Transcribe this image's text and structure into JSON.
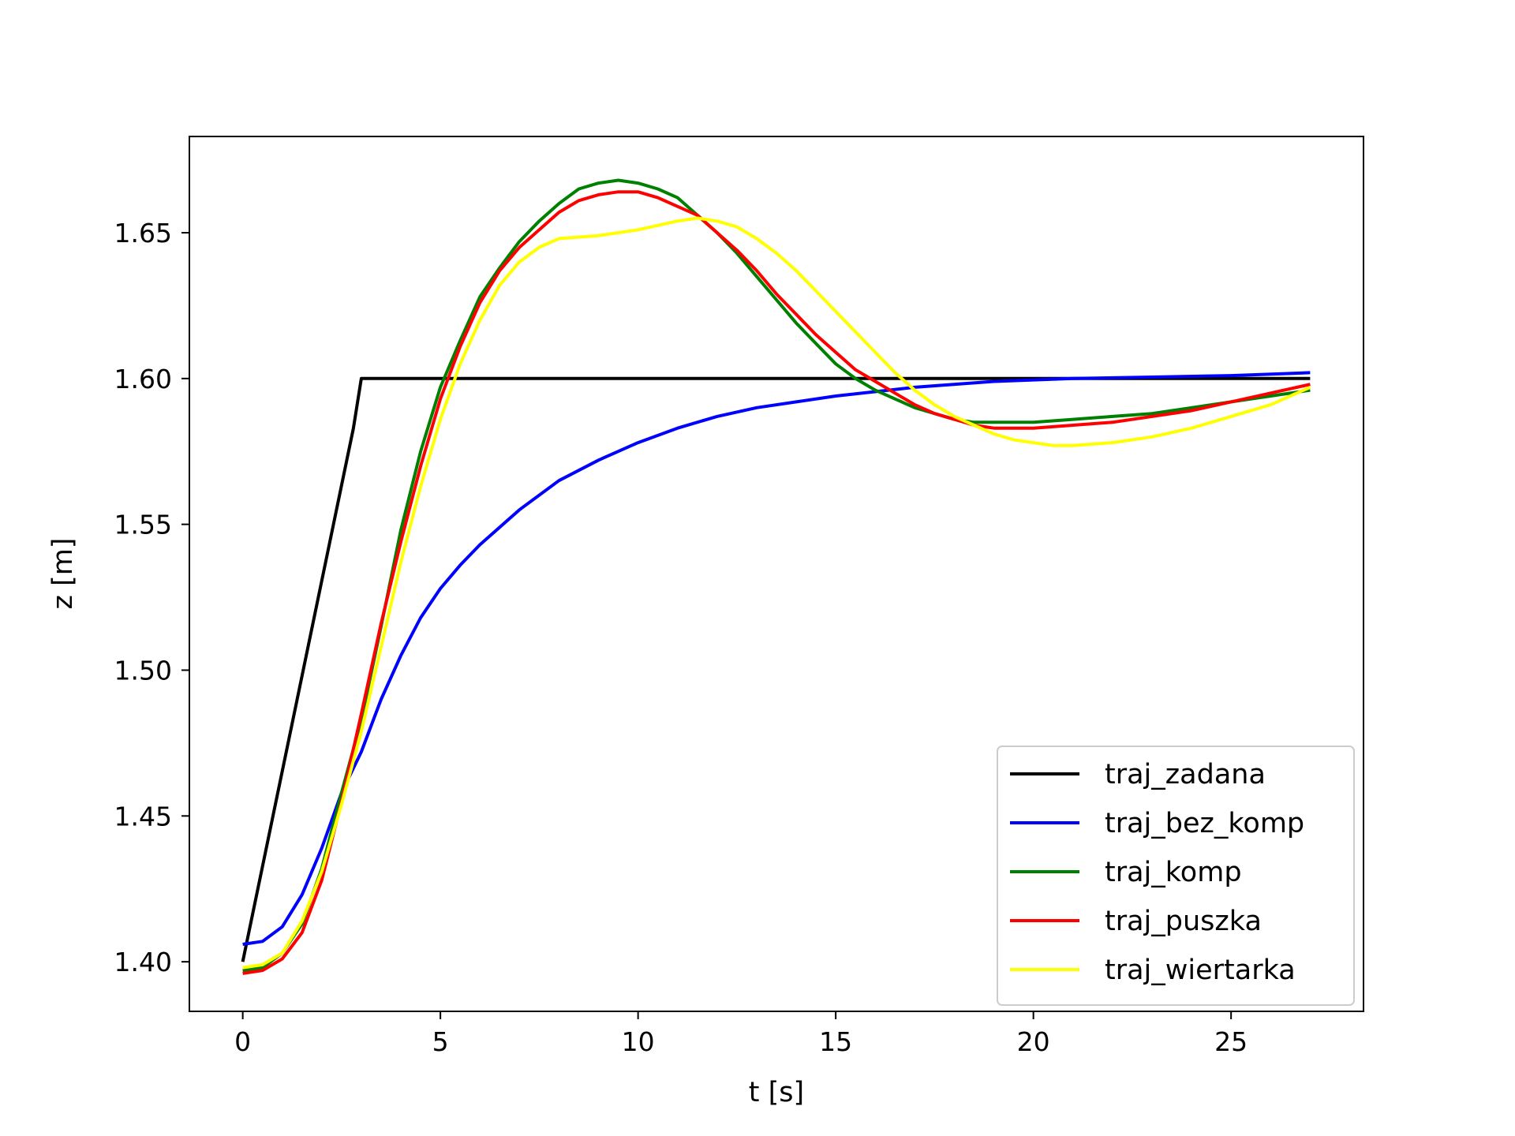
{
  "chart_data": {
    "type": "line",
    "title": "",
    "xlabel": "t [s]",
    "ylabel": "z [m]",
    "xlim": [
      -1.35,
      28.35
    ],
    "ylim": [
      1.383,
      1.683
    ],
    "xticks": [
      0,
      5,
      10,
      15,
      20,
      25
    ],
    "xtick_labels": [
      "0",
      "5",
      "10",
      "15",
      "20",
      "25"
    ],
    "yticks": [
      1.4,
      1.45,
      1.5,
      1.55,
      1.6,
      1.65
    ],
    "ytick_labels": [
      "1.40",
      "1.45",
      "1.50",
      "1.55",
      "1.60",
      "1.65"
    ],
    "grid": false,
    "legend_position": "lower-right",
    "series": [
      {
        "name": "traj_zadana",
        "color": "#000000",
        "points": [
          [
            0,
            1.4
          ],
          [
            2.8,
            1.583
          ],
          [
            3.0,
            1.6
          ],
          [
            27,
            1.6
          ]
        ]
      },
      {
        "name": "traj_bez_komp",
        "color": "#0000ff",
        "points": [
          [
            0,
            1.406
          ],
          [
            0.5,
            1.407
          ],
          [
            1,
            1.412
          ],
          [
            1.5,
            1.423
          ],
          [
            2,
            1.439
          ],
          [
            2.5,
            1.458
          ],
          [
            3,
            1.472
          ],
          [
            3.5,
            1.49
          ],
          [
            4,
            1.505
          ],
          [
            4.5,
            1.518
          ],
          [
            5,
            1.528
          ],
          [
            5.5,
            1.536
          ],
          [
            6,
            1.543
          ],
          [
            7,
            1.555
          ],
          [
            8,
            1.565
          ],
          [
            9,
            1.572
          ],
          [
            10,
            1.578
          ],
          [
            11,
            1.583
          ],
          [
            12,
            1.587
          ],
          [
            13,
            1.59
          ],
          [
            14,
            1.592
          ],
          [
            15,
            1.594
          ],
          [
            17,
            1.597
          ],
          [
            19,
            1.599
          ],
          [
            21,
            1.6
          ],
          [
            23,
            1.6005
          ],
          [
            25,
            1.601
          ],
          [
            27,
            1.602
          ]
        ]
      },
      {
        "name": "traj_komp",
        "color": "#008000",
        "points": [
          [
            0,
            1.397
          ],
          [
            0.5,
            1.398
          ],
          [
            1,
            1.403
          ],
          [
            1.5,
            1.413
          ],
          [
            2,
            1.432
          ],
          [
            2.5,
            1.458
          ],
          [
            3,
            1.483
          ],
          [
            3.5,
            1.515
          ],
          [
            4,
            1.548
          ],
          [
            4.5,
            1.575
          ],
          [
            5,
            1.597
          ],
          [
            5.5,
            1.613
          ],
          [
            6,
            1.628
          ],
          [
            6.5,
            1.638
          ],
          [
            7,
            1.647
          ],
          [
            7.5,
            1.654
          ],
          [
            8,
            1.66
          ],
          [
            8.5,
            1.665
          ],
          [
            9,
            1.667
          ],
          [
            9.5,
            1.668
          ],
          [
            10,
            1.667
          ],
          [
            10.5,
            1.665
          ],
          [
            11,
            1.662
          ],
          [
            11.5,
            1.656
          ],
          [
            12,
            1.65
          ],
          [
            12.5,
            1.643
          ],
          [
            13,
            1.635
          ],
          [
            13.5,
            1.627
          ],
          [
            14,
            1.619
          ],
          [
            14.5,
            1.612
          ],
          [
            15,
            1.605
          ],
          [
            15.5,
            1.6
          ],
          [
            16,
            1.596
          ],
          [
            16.5,
            1.593
          ],
          [
            17,
            1.59
          ],
          [
            17.5,
            1.588
          ],
          [
            18,
            1.586
          ],
          [
            18.5,
            1.585
          ],
          [
            19,
            1.585
          ],
          [
            20,
            1.585
          ],
          [
            21,
            1.586
          ],
          [
            22,
            1.587
          ],
          [
            23,
            1.588
          ],
          [
            24,
            1.59
          ],
          [
            25,
            1.592
          ],
          [
            26,
            1.594
          ],
          [
            27,
            1.596
          ]
        ]
      },
      {
        "name": "traj_puszka",
        "color": "#ff0000",
        "points": [
          [
            0,
            1.396
          ],
          [
            0.5,
            1.397
          ],
          [
            1,
            1.401
          ],
          [
            1.5,
            1.41
          ],
          [
            2,
            1.428
          ],
          [
            2.5,
            1.455
          ],
          [
            3,
            1.485
          ],
          [
            3.5,
            1.516
          ],
          [
            4,
            1.544
          ],
          [
            4.5,
            1.57
          ],
          [
            5,
            1.593
          ],
          [
            5.5,
            1.611
          ],
          [
            6,
            1.626
          ],
          [
            6.5,
            1.637
          ],
          [
            7,
            1.645
          ],
          [
            7.5,
            1.651
          ],
          [
            8,
            1.657
          ],
          [
            8.5,
            1.661
          ],
          [
            9,
            1.663
          ],
          [
            9.5,
            1.664
          ],
          [
            10,
            1.664
          ],
          [
            10.5,
            1.662
          ],
          [
            11,
            1.659
          ],
          [
            11.5,
            1.656
          ],
          [
            12,
            1.65
          ],
          [
            12.5,
            1.644
          ],
          [
            13,
            1.637
          ],
          [
            13.5,
            1.629
          ],
          [
            14,
            1.622
          ],
          [
            14.5,
            1.615
          ],
          [
            15,
            1.609
          ],
          [
            15.5,
            1.603
          ],
          [
            16,
            1.599
          ],
          [
            16.5,
            1.595
          ],
          [
            17,
            1.591
          ],
          [
            17.5,
            1.588
          ],
          [
            18,
            1.586
          ],
          [
            18.5,
            1.584
          ],
          [
            19,
            1.583
          ],
          [
            20,
            1.583
          ],
          [
            21,
            1.584
          ],
          [
            22,
            1.585
          ],
          [
            23,
            1.587
          ],
          [
            24,
            1.589
          ],
          [
            25,
            1.592
          ],
          [
            26,
            1.595
          ],
          [
            27,
            1.598
          ]
        ]
      },
      {
        "name": "traj_wiertarka",
        "color": "#ffff00",
        "points": [
          [
            0,
            1.398
          ],
          [
            0.5,
            1.399
          ],
          [
            1,
            1.403
          ],
          [
            1.5,
            1.414
          ],
          [
            2,
            1.431
          ],
          [
            2.5,
            1.454
          ],
          [
            3,
            1.479
          ],
          [
            3.5,
            1.508
          ],
          [
            4,
            1.537
          ],
          [
            4.5,
            1.563
          ],
          [
            5,
            1.586
          ],
          [
            5.5,
            1.605
          ],
          [
            6,
            1.62
          ],
          [
            6.5,
            1.632
          ],
          [
            7,
            1.64
          ],
          [
            7.5,
            1.645
          ],
          [
            8,
            1.648
          ],
          [
            9,
            1.649
          ],
          [
            10,
            1.651
          ],
          [
            11,
            1.654
          ],
          [
            11.5,
            1.655
          ],
          [
            12,
            1.654
          ],
          [
            12.5,
            1.652
          ],
          [
            13,
            1.648
          ],
          [
            13.5,
            1.643
          ],
          [
            14,
            1.637
          ],
          [
            14.5,
            1.63
          ],
          [
            15,
            1.623
          ],
          [
            15.5,
            1.616
          ],
          [
            16,
            1.609
          ],
          [
            16.5,
            1.602
          ],
          [
            17,
            1.596
          ],
          [
            17.5,
            1.591
          ],
          [
            18,
            1.587
          ],
          [
            18.5,
            1.584
          ],
          [
            19,
            1.581
          ],
          [
            19.5,
            1.579
          ],
          [
            20,
            1.578
          ],
          [
            20.5,
            1.577
          ],
          [
            21,
            1.577
          ],
          [
            22,
            1.578
          ],
          [
            23,
            1.58
          ],
          [
            24,
            1.583
          ],
          [
            25,
            1.587
          ],
          [
            26,
            1.591
          ],
          [
            27,
            1.597
          ]
        ]
      }
    ]
  }
}
